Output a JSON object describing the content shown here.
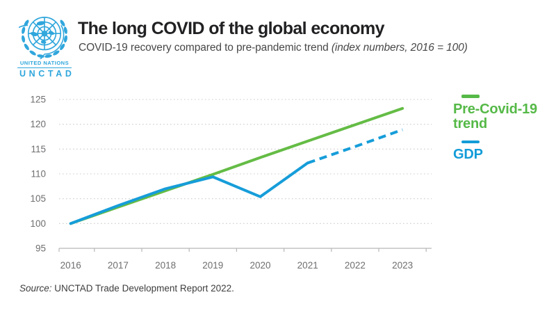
{
  "logo": {
    "org": "UNITED NATIONS",
    "acronym": "UNCTAD",
    "color": "#2FA6DC"
  },
  "header": {
    "title": "The long COVID of the global economy",
    "subtitle": "COVID-19 recovery compared to pre-pandemic trend",
    "subtitle_note": "(index numbers, 2016 = 100)"
  },
  "legend": {
    "items": [
      {
        "label": "Pre-Covid-19 trend",
        "color": "#55B947"
      },
      {
        "label": "GDP",
        "color": "#139CD8"
      }
    ]
  },
  "source": {
    "label": "Source:",
    "text": "UNCTAD Trade Development Report 2022."
  },
  "chart_data": {
    "type": "line",
    "title": "The long COVID of the global economy",
    "subtitle": "COVID-19 recovery compared to pre-pandemic trend (index numbers, 2016 = 100)",
    "categories": [
      "2016",
      "2017",
      "2018",
      "2019",
      "2020",
      "2021",
      "2022",
      "2023"
    ],
    "series": [
      {
        "name": "Pre-Covid-19 trend",
        "color": "#64BC45",
        "line_style": "solid",
        "values": [
          100,
          103.3,
          106.6,
          109.9,
          113.3,
          116.6,
          119.9,
          123.2
        ]
      },
      {
        "name": "GDP",
        "color": "#169DD9",
        "line_style": "solid-then-dashed",
        "dash_from_index": 5,
        "values": [
          100,
          103.6,
          107.0,
          109.4,
          105.4,
          112.2,
          115.5,
          118.9
        ]
      }
    ],
    "ylim": [
      95,
      125
    ],
    "yticks": [
      95,
      100,
      105,
      110,
      115,
      120,
      125
    ],
    "xlabel": "",
    "ylabel": "",
    "grid": "horizontal-dotted",
    "legend_position": "right"
  }
}
